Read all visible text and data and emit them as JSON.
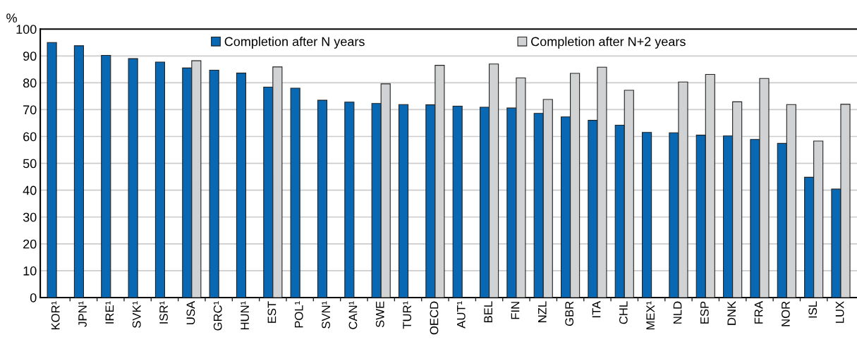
{
  "chart_data": {
    "type": "bar",
    "ylabel": "%",
    "categories": [
      "KOR¹",
      "JPN¹",
      "IRE¹",
      "SVK¹",
      "ISR¹",
      "USA",
      "GRC¹",
      "HUN¹",
      "EST",
      "POL¹",
      "SVN¹",
      "CAN¹",
      "SWE",
      "TUR¹",
      "OECD",
      "AUT¹",
      "BEL",
      "FIN",
      "NZL",
      "GBR",
      "ITA",
      "CHL",
      "MEX¹",
      "NLD",
      "ESP",
      "DNK",
      "FRA",
      "NOR",
      "ISL",
      "LUX"
    ],
    "series": [
      {
        "name": "Completion after N years",
        "color": "#0868b4",
        "values": [
          95,
          93.8,
          90.2,
          89,
          87.7,
          85.5,
          84.7,
          83.6,
          78.4,
          78,
          73.5,
          72.8,
          72.3,
          71.9,
          71.8,
          71.3,
          70.9,
          70.6,
          68.6,
          67.3,
          66,
          64.2,
          61.5,
          61.4,
          60.5,
          60.2,
          58.9,
          57.4,
          44.8,
          40.4
        ]
      },
      {
        "name": "Completion after N+2 years",
        "color": "#d0d2d4",
        "values": [
          null,
          null,
          null,
          null,
          null,
          88.2,
          null,
          null,
          85.9,
          null,
          null,
          null,
          79.6,
          null,
          86.5,
          null,
          87,
          81.8,
          73.8,
          83.5,
          85.8,
          77.2,
          null,
          80.3,
          83.1,
          72.9,
          81.6,
          71.9,
          58.3,
          72
        ]
      }
    ],
    "ylim": [
      0,
      100
    ],
    "yticks": [
      0,
      10,
      20,
      30,
      40,
      50,
      60,
      70,
      80,
      90,
      100
    ],
    "grid": "y",
    "legend": "top"
  }
}
